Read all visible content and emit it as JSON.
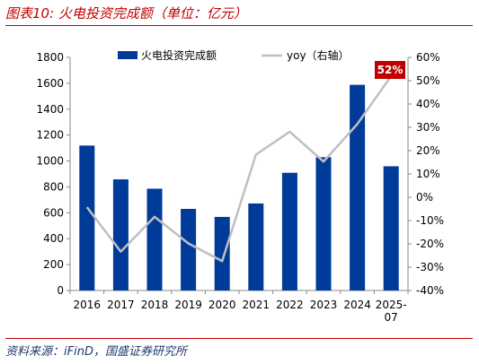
{
  "header": {
    "title": "图表10:  火电投资完成额（单位：亿元）"
  },
  "footer": {
    "source": "资料来源：iFinD，国盛证券研究所"
  },
  "chart_data": {
    "type": "bar",
    "categories": [
      "2016",
      "2017",
      "2018",
      "2019",
      "2020",
      "2021",
      "2022",
      "2023",
      "2024",
      "2025-07"
    ],
    "series": [
      {
        "name": "火电投资完成额",
        "type": "bar",
        "axis": "left",
        "color": "#003B9A",
        "values": [
          1119,
          858,
          786,
          630,
          568,
          672,
          909,
          1029,
          1588,
          959
        ]
      },
      {
        "name": "yoy（右轴）",
        "type": "line",
        "axis": "right",
        "color": "#BFBFBF",
        "values": [
          -4.3,
          -23.3,
          -8.4,
          -19.8,
          -27.4,
          18.3,
          28.1,
          15.3,
          31.4,
          52.0
        ]
      }
    ],
    "y_left": {
      "min": 0,
      "max": 1800,
      "step": 200,
      "ticks": [
        "0",
        "200",
        "400",
        "600",
        "800",
        "1000",
        "1200",
        "1400",
        "1600",
        "1800"
      ]
    },
    "y_right": {
      "min": -40,
      "max": 60,
      "step": 10,
      "ticks": [
        "-40%",
        "-30%",
        "-20%",
        "-10%",
        "0%",
        "10%",
        "20%",
        "30%",
        "40%",
        "50%",
        "60%"
      ]
    },
    "annotation": {
      "text": "52%",
      "series": 1,
      "index": 9,
      "color": "#C00000"
    },
    "legend": {
      "position": "top"
    },
    "grid": false
  }
}
